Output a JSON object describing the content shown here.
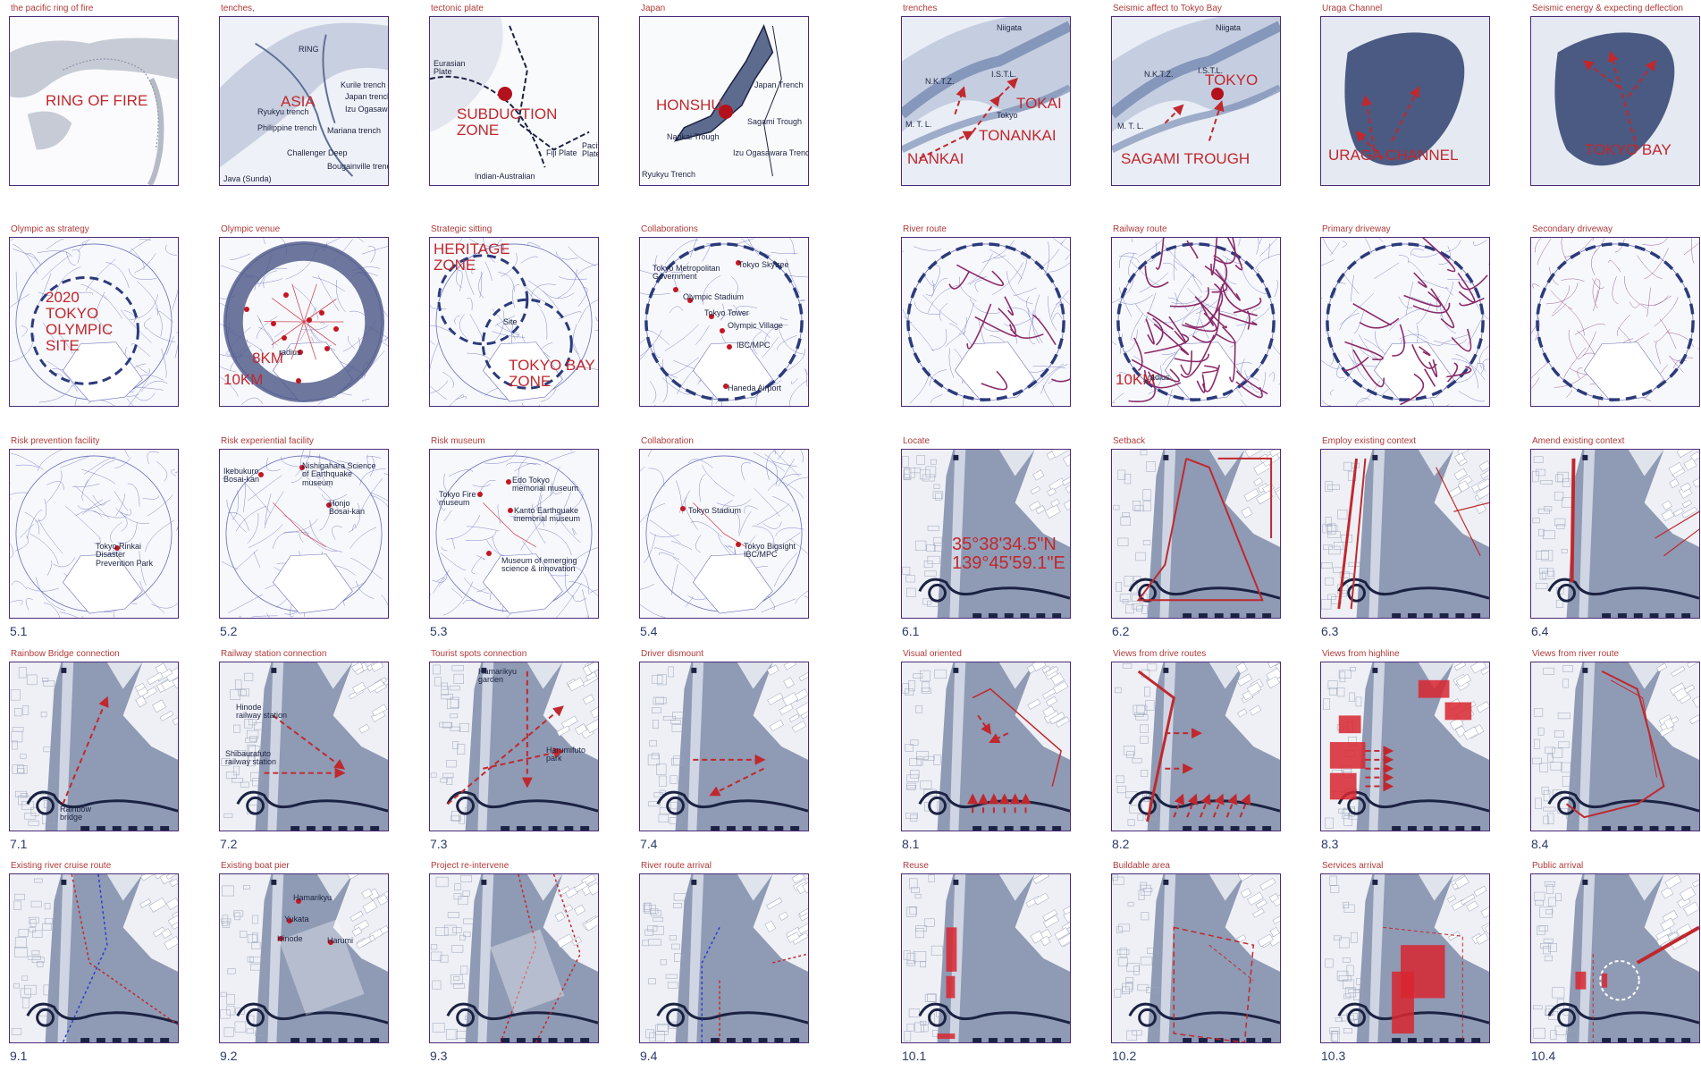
{
  "board": {
    "cells": [
      {
        "caption": "the pacific ring of fire",
        "number": "",
        "variant": "globe",
        "labels": [
          {
            "text": "RING OF FIRE",
            "kind": "big"
          }
        ]
      },
      {
        "caption": "tenches,",
        "number": "",
        "variant": "atlas",
        "labels": [
          {
            "text": "RING",
            "kind": "sm"
          },
          {
            "text": "ASIA",
            "kind": "big"
          },
          {
            "text": "Kurile trench",
            "kind": "sm"
          },
          {
            "text": "Japan trench",
            "kind": "sm"
          },
          {
            "text": "Izu Ogasawara trench",
            "kind": "sm"
          },
          {
            "text": "Ryukyu trench",
            "kind": "sm"
          },
          {
            "text": "Philippine trench",
            "kind": "sm"
          },
          {
            "text": "Mariana trench",
            "kind": "sm"
          },
          {
            "text": "Challenger Deep",
            "kind": "sm"
          },
          {
            "text": "Bougainville trench",
            "kind": "sm"
          },
          {
            "text": "Java (Sunda)",
            "kind": "sm"
          }
        ]
      },
      {
        "caption": "tectonic plate",
        "number": "",
        "variant": "plates",
        "labels": [
          {
            "text": "Eurasian\nPlate",
            "kind": "sm"
          },
          {
            "text": "SUBDUCTION\nZONE",
            "kind": "big"
          },
          {
            "text": "Indian-Australian",
            "kind": "sm"
          },
          {
            "text": "Fiji Plate",
            "kind": "sm"
          },
          {
            "text": "Pacific\nPlate",
            "kind": "sm"
          }
        ]
      },
      {
        "caption": "Japan",
        "number": "",
        "variant": "japan",
        "labels": [
          {
            "text": "HONSHU",
            "kind": "big"
          },
          {
            "text": "Japan Trench",
            "kind": "sm"
          },
          {
            "text": "Sagami Trough",
            "kind": "sm"
          },
          {
            "text": "Nankai Trough",
            "kind": "sm"
          },
          {
            "text": "Izu Ogasawara Trench",
            "kind": "sm"
          },
          {
            "text": "Ryukyu Trench",
            "kind": "sm"
          }
        ]
      },
      {
        "caption": "trenches",
        "number": "",
        "variant": "trench-zoom",
        "labels": [
          {
            "text": "Niigata",
            "kind": "sm"
          },
          {
            "text": "Tokyo",
            "kind": "sm"
          },
          {
            "text": "N.K.T.Z.",
            "kind": "sm"
          },
          {
            "text": "I.S.T.L.",
            "kind": "sm"
          },
          {
            "text": "TOKAI",
            "kind": "big"
          },
          {
            "text": "TONANKAI",
            "kind": "big"
          },
          {
            "text": "M. T. L.",
            "kind": "sm"
          },
          {
            "text": "NANKAI",
            "kind": "big"
          }
        ]
      },
      {
        "caption": "Seismic affect to Tokyo Bay",
        "number": "",
        "variant": "trench-tokyo",
        "labels": [
          {
            "text": "Niigata",
            "kind": "sm"
          },
          {
            "text": "N.K.T.Z.",
            "kind": "sm"
          },
          {
            "text": "I.S.T.L.",
            "kind": "sm"
          },
          {
            "text": "TOKYO",
            "kind": "big"
          },
          {
            "text": "M. T. L.",
            "kind": "sm"
          },
          {
            "text": "SAGAMI TROUGH",
            "kind": "big"
          }
        ]
      },
      {
        "caption": "Uraga Channel",
        "number": "",
        "variant": "uraga",
        "labels": [
          {
            "text": "URAGA CHANNEL",
            "kind": "big"
          }
        ]
      },
      {
        "caption": "Seismic energy & expecting deflection",
        "number": "",
        "variant": "bay",
        "labels": [
          {
            "text": "TOKYO BAY",
            "kind": "big"
          }
        ]
      },
      {
        "caption": "Olympic as strategy",
        "number": "",
        "variant": "city-olympic",
        "labels": [
          {
            "text": "2020\nTOKYO\nOLYMPIC\nSITE",
            "kind": "big"
          }
        ]
      },
      {
        "caption": "Olympic venue",
        "number": "",
        "variant": "city-venue",
        "labels": [
          {
            "text": "8KM",
            "kind": "big"
          },
          {
            "text": "10KM",
            "kind": "big"
          },
          {
            "text": "radius",
            "kind": "sm"
          }
        ]
      },
      {
        "caption": "Strategic sitting",
        "number": "",
        "variant": "city-strategic",
        "labels": [
          {
            "text": "HERITAGE\nZONE",
            "kind": "big"
          },
          {
            "text": "TOKYO BAY\nZONE",
            "kind": "big"
          },
          {
            "text": "Site",
            "kind": "sm"
          }
        ]
      },
      {
        "caption": "Collaborations",
        "number": "",
        "variant": "city-collab",
        "labels": [
          {
            "text": "Tokyo Metropolitan\nGovernment",
            "kind": "sm"
          },
          {
            "text": "Tokyo Skytree",
            "kind": "sm"
          },
          {
            "text": "Olympic Stadium",
            "kind": "sm"
          },
          {
            "text": "Tokyo Tower",
            "kind": "sm"
          },
          {
            "text": "Olympic Village",
            "kind": "sm"
          },
          {
            "text": "IBC/MPC",
            "kind": "sm"
          },
          {
            "text": "Haneda Airport",
            "kind": "sm"
          }
        ]
      },
      {
        "caption": "River route",
        "number": "",
        "variant": "city-river",
        "labels": []
      },
      {
        "caption": "Railway route",
        "number": "",
        "variant": "city-rail",
        "labels": [
          {
            "text": "10KM",
            "kind": "big"
          },
          {
            "text": "radius",
            "kind": "sm"
          }
        ]
      },
      {
        "caption": "Primary driveway",
        "number": "",
        "variant": "city-drive1",
        "labels": []
      },
      {
        "caption": "Secondary driveway",
        "number": "",
        "variant": "city-drive2",
        "labels": []
      },
      {
        "caption": "Risk prevention facility",
        "number": "5.1",
        "variant": "city-risk1",
        "labels": [
          {
            "text": "Tokyo Rinkai\nDisaster\nPrevention Park",
            "kind": "sm"
          }
        ]
      },
      {
        "caption": "Risk experiential facility",
        "number": "5.2",
        "variant": "city-risk2",
        "labels": [
          {
            "text": "Ikebukuro\nBosai-kan",
            "kind": "sm"
          },
          {
            "text": "Nishigahara Science\nof Earthquake\nmuseum",
            "kind": "sm"
          },
          {
            "text": "Honjo\nBosai-kan",
            "kind": "sm"
          }
        ]
      },
      {
        "caption": "Risk museum",
        "number": "5.3",
        "variant": "city-risk3",
        "labels": [
          {
            "text": "Edo Tokyo\nmemorial museum",
            "kind": "sm"
          },
          {
            "text": "Tokyo Fire\nmuseum",
            "kind": "sm"
          },
          {
            "text": "Kanto Earthquake\nmemorial museum",
            "kind": "sm"
          },
          {
            "text": "Museum of emerging\nscience & innovation",
            "kind": "sm"
          }
        ]
      },
      {
        "caption": "Collaboration",
        "number": "5.4",
        "variant": "city-collab2",
        "labels": [
          {
            "text": "Tokyo Stadium",
            "kind": "sm"
          },
          {
            "text": "Tokyo Bigsight\nIBC/MPC",
            "kind": "sm"
          }
        ]
      },
      {
        "caption": "Locate",
        "number": "6.1",
        "variant": "site-locate",
        "labels": [
          {
            "text": "35°38'34.5\"N\n139°45'59.1\"E",
            "kind": "coords"
          }
        ]
      },
      {
        "caption": "Setback",
        "number": "6.2",
        "variant": "site-setback",
        "labels": []
      },
      {
        "caption": "Employ existing context",
        "number": "6.3",
        "variant": "site-employ",
        "labels": []
      },
      {
        "caption": "Amend existing context",
        "number": "6.4",
        "variant": "site-amend",
        "labels": []
      },
      {
        "caption": "Rainbow Bridge connection",
        "number": "7.1",
        "variant": "site-rainbow",
        "labels": [
          {
            "text": "Rainbow\nbridge",
            "kind": "sm"
          }
        ]
      },
      {
        "caption": "Railway station connection",
        "number": "7.2",
        "variant": "site-railway",
        "labels": [
          {
            "text": "Hinode\nrailway station",
            "kind": "sm"
          },
          {
            "text": "Shibaurafuto\nrailway station",
            "kind": "sm"
          }
        ]
      },
      {
        "caption": "Tourist spots connection",
        "number": "7.3",
        "variant": "site-tourist",
        "labels": [
          {
            "text": "Hamarikyu\ngarden",
            "kind": "sm"
          },
          {
            "text": "Harumifuto\npark",
            "kind": "sm"
          }
        ]
      },
      {
        "caption": "Driver dismount",
        "number": "7.4",
        "variant": "site-driver",
        "labels": []
      },
      {
        "caption": "Visual oriented",
        "number": "8.1",
        "variant": "site-visual",
        "labels": []
      },
      {
        "caption": "Views from drive routes",
        "number": "8.2",
        "variant": "site-views-drive",
        "labels": []
      },
      {
        "caption": "Views from highline",
        "number": "8.3",
        "variant": "site-views-high",
        "labels": []
      },
      {
        "caption": "Views from river route",
        "number": "8.4",
        "variant": "site-views-river",
        "labels": []
      },
      {
        "caption": "Existing river cruise route",
        "number": "9.1",
        "variant": "site-cruise",
        "labels": []
      },
      {
        "caption": "Existing boat pier",
        "number": "9.2",
        "variant": "site-pier",
        "labels": [
          {
            "text": "Hamarikyu",
            "kind": "sm"
          },
          {
            "text": "Yukata",
            "kind": "sm"
          },
          {
            "text": "Hinode",
            "kind": "sm"
          },
          {
            "text": "Harumi",
            "kind": "sm"
          }
        ]
      },
      {
        "caption": "Project re-intervene",
        "number": "9.3",
        "variant": "site-reintervene",
        "labels": []
      },
      {
        "caption": "River route arrival",
        "number": "9.4",
        "variant": "site-river-arrival",
        "labels": []
      },
      {
        "caption": "Reuse",
        "number": "10.1",
        "variant": "site-reuse",
        "labels": []
      },
      {
        "caption": "Buildable area",
        "number": "10.2",
        "variant": "site-buildable",
        "labels": []
      },
      {
        "caption": "Services arrival",
        "number": "10.3",
        "variant": "site-services",
        "labels": []
      },
      {
        "caption": "Public arrival",
        "number": "10.4",
        "variant": "site-public",
        "labels": []
      }
    ]
  },
  "colors": {
    "accent": "#c0282d",
    "frame": "#4b2a78",
    "ink": "#1c2340",
    "navy": "#2b3a7a",
    "water": "#5a6a92"
  }
}
